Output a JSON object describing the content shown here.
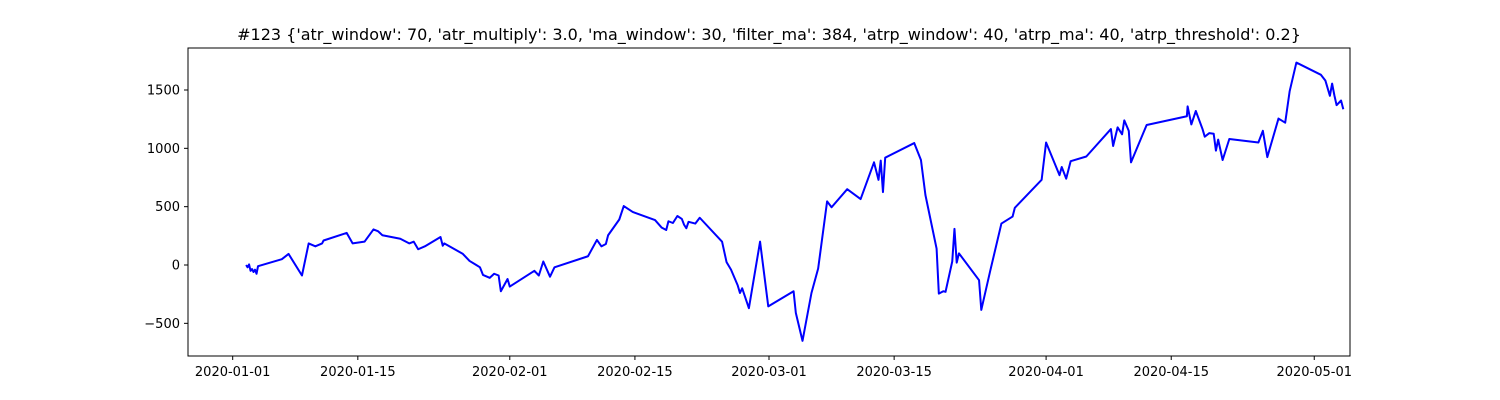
{
  "chart_data": {
    "type": "line",
    "title": "#123 {'atr_window': 70, 'atr_multiply': 3.0, 'ma_window': 30, 'filter_ma': 384, 'atrp_window': 40, 'atrp_ma': 40, 'atrp_threshold': 0.2}",
    "xlabel": "",
    "ylabel": "",
    "xlim": [
      "2019-12-27",
      "2020-05-05"
    ],
    "ylim": [
      -780,
      1860
    ],
    "grid": false,
    "legend": "none",
    "color": "#0000ff",
    "x_ticks": [
      {
        "date": "2020-01-01",
        "label": "2020-01-01"
      },
      {
        "date": "2020-01-15",
        "label": "2020-01-15"
      },
      {
        "date": "2020-02-01",
        "label": "2020-02-01"
      },
      {
        "date": "2020-02-15",
        "label": "2020-02-15"
      },
      {
        "date": "2020-03-01",
        "label": "2020-03-01"
      },
      {
        "date": "2020-03-15",
        "label": "2020-03-15"
      },
      {
        "date": "2020-04-01",
        "label": "2020-04-01"
      },
      {
        "date": "2020-04-15",
        "label": "2020-04-15"
      },
      {
        "date": "2020-05-01",
        "label": "2020-05-01"
      }
    ],
    "y_ticks": [
      -500,
      0,
      500,
      1000,
      1500
    ],
    "series": [
      {
        "points": [
          [
            "2020-01-02 12:00",
            0
          ],
          [
            "2020-01-02 16:00",
            -20
          ],
          [
            "2020-01-02 20:00",
            5
          ],
          [
            "2020-01-03 00:00",
            -50
          ],
          [
            "2020-01-03 04:00",
            -35
          ],
          [
            "2020-01-03 08:00",
            -60
          ],
          [
            "2020-01-03 12:00",
            -40
          ],
          [
            "2020-01-03 16:00",
            -75
          ],
          [
            "2020-01-03 20:00",
            -10
          ],
          [
            "2020-01-06 12:00",
            50
          ],
          [
            "2020-01-07 06:00",
            95
          ],
          [
            "2020-01-08 18:00",
            -90
          ],
          [
            "2020-01-09 12:00",
            185
          ],
          [
            "2020-01-10 06:00",
            160
          ],
          [
            "2020-01-11 00:00",
            185
          ],
          [
            "2020-01-11 04:00",
            210
          ],
          [
            "2020-01-13 18:00",
            275
          ],
          [
            "2020-01-14 10:00",
            185
          ],
          [
            "2020-01-15 18:00",
            200
          ],
          [
            "2020-01-16 18:00",
            305
          ],
          [
            "2020-01-17 06:00",
            290
          ],
          [
            "2020-01-17 18:00",
            255
          ],
          [
            "2020-01-19 18:00",
            225
          ],
          [
            "2020-01-20 18:00",
            185
          ],
          [
            "2020-01-21 06:00",
            200
          ],
          [
            "2020-01-21 18:00",
            135
          ],
          [
            "2020-01-22 12:00",
            160
          ],
          [
            "2020-01-24 06:00",
            240
          ],
          [
            "2020-01-24 12:00",
            165
          ],
          [
            "2020-01-24 16:00",
            185
          ],
          [
            "2020-01-26 18:00",
            95
          ],
          [
            "2020-01-27 12:00",
            35
          ],
          [
            "2020-01-28 06:00",
            0
          ],
          [
            "2020-01-28 16:00",
            -20
          ],
          [
            "2020-01-29 00:00",
            -85
          ],
          [
            "2020-01-29 18:00",
            -110
          ],
          [
            "2020-01-30 06:00",
            -75
          ],
          [
            "2020-01-30 18:00",
            -90
          ],
          [
            "2020-01-31 00:00",
            -225
          ],
          [
            "2020-01-31 18:00",
            -120
          ],
          [
            "2020-02-01 00:00",
            -185
          ],
          [
            "2020-02-03 18:00",
            -50
          ],
          [
            "2020-02-04 06:00",
            -90
          ],
          [
            "2020-02-04 18:00",
            30
          ],
          [
            "2020-02-05 12:00",
            -100
          ],
          [
            "2020-02-06 00:00",
            -20
          ],
          [
            "2020-02-09 18:00",
            75
          ],
          [
            "2020-02-10 18:00",
            215
          ],
          [
            "2020-02-11 06:00",
            160
          ],
          [
            "2020-02-11 18:00",
            180
          ],
          [
            "2020-02-12 00:00",
            255
          ],
          [
            "2020-02-13 06:00",
            390
          ],
          [
            "2020-02-13 18:00",
            505
          ],
          [
            "2020-02-14 18:00",
            455
          ],
          [
            "2020-02-17 06:00",
            385
          ],
          [
            "2020-02-18 00:00",
            320
          ],
          [
            "2020-02-18 12:00",
            300
          ],
          [
            "2020-02-18 18:00",
            375
          ],
          [
            "2020-02-19 06:00",
            360
          ],
          [
            "2020-02-19 18:00",
            420
          ],
          [
            "2020-02-20 06:00",
            395
          ],
          [
            "2020-02-20 12:00",
            345
          ],
          [
            "2020-02-20 18:00",
            315
          ],
          [
            "2020-02-21 00:00",
            370
          ],
          [
            "2020-02-21 18:00",
            355
          ],
          [
            "2020-02-22 06:00",
            405
          ],
          [
            "2020-02-24 18:00",
            200
          ],
          [
            "2020-02-25 06:00",
            25
          ],
          [
            "2020-02-25 18:00",
            -40
          ],
          [
            "2020-02-26 12:00",
            -175
          ],
          [
            "2020-02-26 18:00",
            -240
          ],
          [
            "2020-02-27 00:00",
            -200
          ],
          [
            "2020-02-27 18:00",
            -370
          ],
          [
            "2020-02-29 00:00",
            200
          ],
          [
            "2020-02-29 22:00",
            -355
          ],
          [
            "2020-03-03 18:00",
            -225
          ],
          [
            "2020-03-04 00:00",
            -410
          ],
          [
            "2020-03-04 18:00",
            -650
          ],
          [
            "2020-03-05 18:00",
            -240
          ],
          [
            "2020-03-06 12:00",
            -30
          ],
          [
            "2020-03-07 12:00",
            545
          ],
          [
            "2020-03-08 00:00",
            495
          ],
          [
            "2020-03-09 18:00",
            650
          ],
          [
            "2020-03-11 06:00",
            565
          ],
          [
            "2020-03-12 18:00",
            880
          ],
          [
            "2020-03-13 06:00",
            730
          ],
          [
            "2020-03-13 12:00",
            895
          ],
          [
            "2020-03-13 18:00",
            625
          ],
          [
            "2020-03-14 00:00",
            920
          ],
          [
            "2020-03-17 06:00",
            1045
          ],
          [
            "2020-03-18 00:00",
            900
          ],
          [
            "2020-03-18 12:00",
            600
          ],
          [
            "2020-03-19 18:00",
            140
          ],
          [
            "2020-03-20 00:00",
            -245
          ],
          [
            "2020-03-20 12:00",
            -225
          ],
          [
            "2020-03-20 18:00",
            -230
          ],
          [
            "2020-03-21 12:00",
            30
          ],
          [
            "2020-03-21 18:00",
            310
          ],
          [
            "2020-03-22 00:00",
            20
          ],
          [
            "2020-03-22 06:00",
            100
          ],
          [
            "2020-03-24 12:00",
            -130
          ],
          [
            "2020-03-24 18:00",
            -385
          ],
          [
            "2020-03-25 18:00",
            -50
          ],
          [
            "2020-03-27 00:00",
            355
          ],
          [
            "2020-03-28 06:00",
            415
          ],
          [
            "2020-03-28 12:00",
            490
          ],
          [
            "2020-03-31 12:00",
            730
          ],
          [
            "2020-04-01 00:00",
            1050
          ],
          [
            "2020-04-02 12:00",
            770
          ],
          [
            "2020-04-02 18:00",
            840
          ],
          [
            "2020-04-03 06:00",
            740
          ],
          [
            "2020-04-03 18:00",
            890
          ],
          [
            "2020-04-05 12:00",
            930
          ],
          [
            "2020-04-08 06:00",
            1165
          ],
          [
            "2020-04-08 12:00",
            1020
          ],
          [
            "2020-04-09 00:00",
            1180
          ],
          [
            "2020-04-09 12:00",
            1120
          ],
          [
            "2020-04-09 18:00",
            1240
          ],
          [
            "2020-04-10 06:00",
            1150
          ],
          [
            "2020-04-10 12:00",
            880
          ],
          [
            "2020-04-12 06:00",
            1200
          ],
          [
            "2020-04-16 18:00",
            1275
          ],
          [
            "2020-04-16 20:00",
            1360
          ],
          [
            "2020-04-17 06:00",
            1205
          ],
          [
            "2020-04-17 18:00",
            1320
          ],
          [
            "2020-04-18 12:00",
            1165
          ],
          [
            "2020-04-18 18:00",
            1100
          ],
          [
            "2020-04-19 06:00",
            1130
          ],
          [
            "2020-04-19 18:00",
            1125
          ],
          [
            "2020-04-20 00:00",
            980
          ],
          [
            "2020-04-20 06:00",
            1075
          ],
          [
            "2020-04-20 18:00",
            900
          ],
          [
            "2020-04-21 12:00",
            1080
          ],
          [
            "2020-04-24 18:00",
            1050
          ],
          [
            "2020-04-25 06:00",
            1150
          ],
          [
            "2020-04-25 18:00",
            925
          ],
          [
            "2020-04-27 00:00",
            1255
          ],
          [
            "2020-04-27 18:00",
            1220
          ],
          [
            "2020-04-28 06:00",
            1490
          ],
          [
            "2020-04-29 00:00",
            1735
          ],
          [
            "2020-05-01 18:00",
            1630
          ],
          [
            "2020-05-02 06:00",
            1580
          ],
          [
            "2020-05-02 18:00",
            1450
          ],
          [
            "2020-05-03 00:00",
            1555
          ],
          [
            "2020-05-03 06:00",
            1455
          ],
          [
            "2020-05-03 12:00",
            1370
          ],
          [
            "2020-05-04 00:00",
            1410
          ],
          [
            "2020-05-04 06:00",
            1335
          ]
        ]
      }
    ]
  }
}
